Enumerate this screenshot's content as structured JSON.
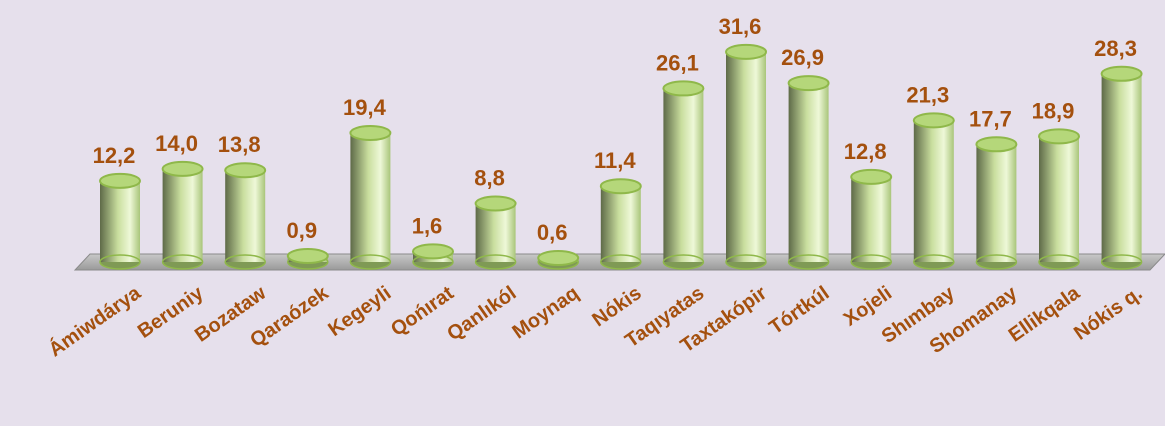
{
  "chart_data": {
    "type": "bar3d",
    "categories": [
      "Ámiwdárya",
      "Beruniy",
      "Bozataw",
      "Qaraózek",
      "Kegeyli",
      "Qońırat",
      "Qanlıkól",
      "Moynaq",
      "Nókis",
      "Taqıyatas",
      "Taxtakópir",
      "Tórtkúl",
      "Xojeli",
      "Shımbay",
      "Shomanay",
      "Ellikqala",
      "Nókis q."
    ],
    "values": [
      12.2,
      14.0,
      13.8,
      0.9,
      19.4,
      1.6,
      8.8,
      0.6,
      11.4,
      26.1,
      31.6,
      26.9,
      12.8,
      21.3,
      17.7,
      18.9,
      28.3
    ],
    "value_labels": [
      "12,2",
      "14,0",
      "13,8",
      "0,9",
      "19,4",
      "1,6",
      "8,8",
      "0,6",
      "11,4",
      "26,1",
      "31,6",
      "26,9",
      "12,8",
      "21,3",
      "17,7",
      "18,9",
      "28,3"
    ],
    "color": "#b5d77a"
  }
}
